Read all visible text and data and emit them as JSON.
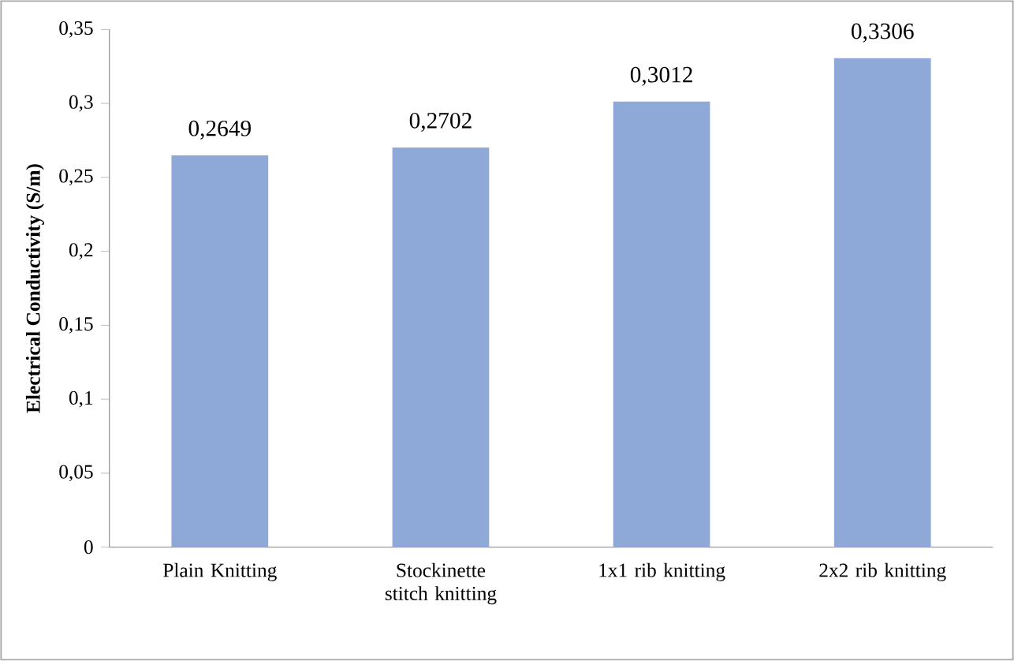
{
  "chart_data": {
    "type": "bar",
    "ylabel": "Electrical Conductivity  (S/m)",
    "categories": [
      "Plain Knitting",
      "Stockinette stitch knitting",
      "1x1 rib knitting",
      "2x2 rib knitting"
    ],
    "values": [
      0.2649,
      0.2702,
      0.3012,
      0.3306
    ],
    "value_labels": [
      "0,2649",
      "0,2702",
      "0,3012",
      "0,3306"
    ],
    "color": "#8ea8d8",
    "ylim": [
      0,
      0.35
    ],
    "yticks": [
      {
        "value": 0,
        "label": "0"
      },
      {
        "value": 0.05,
        "label": "0,05"
      },
      {
        "value": 0.1,
        "label": "0,1"
      },
      {
        "value": 0.15,
        "label": "0,15"
      },
      {
        "value": 0.2,
        "label": "0,2"
      },
      {
        "value": 0.25,
        "label": "0,25"
      },
      {
        "value": 0.3,
        "label": "0,3"
      },
      {
        "value": 0.35,
        "label": "0,35"
      }
    ],
    "grid": false
  }
}
